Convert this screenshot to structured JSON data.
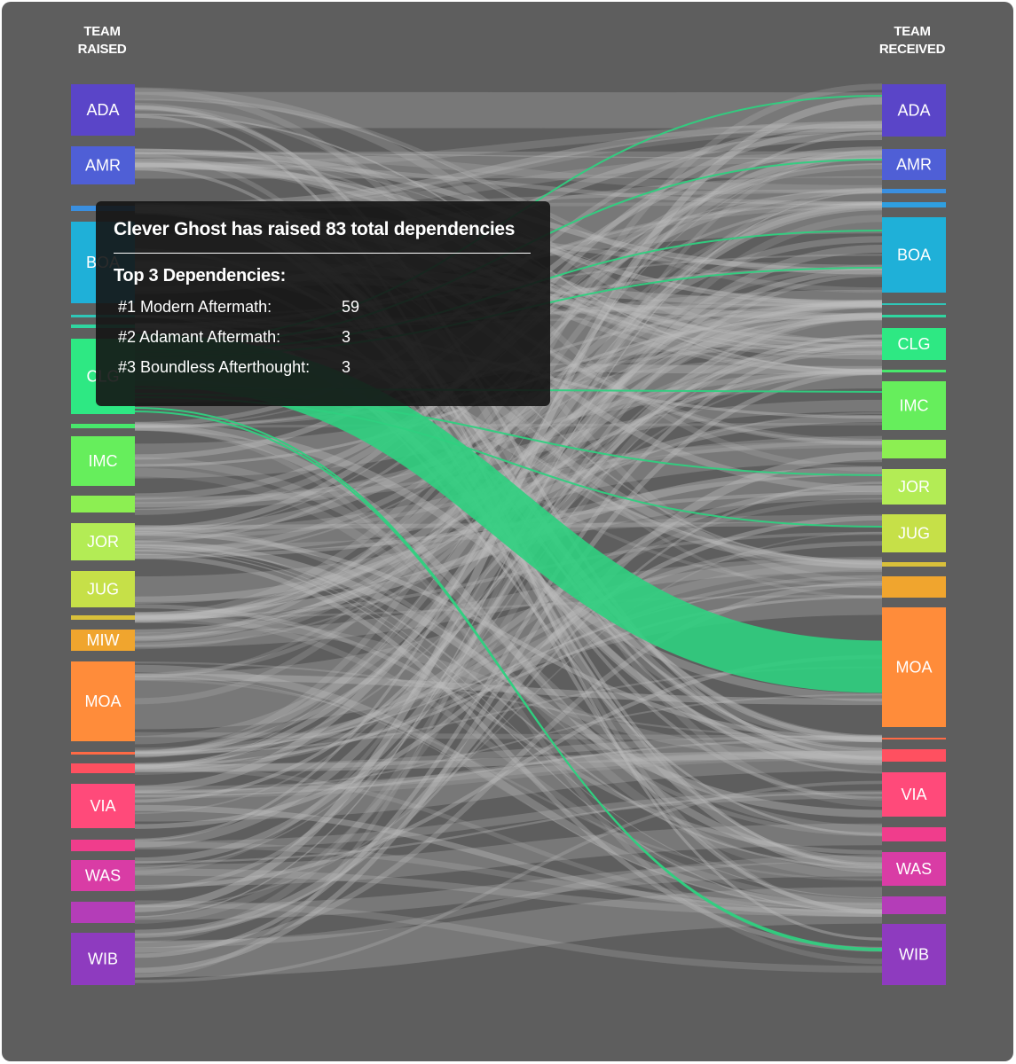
{
  "headers": {
    "left": [
      "TEAM",
      "RAISED"
    ],
    "right": [
      "TEAM",
      "RECEIVED"
    ]
  },
  "colors": {
    "highlight": "#2fd07f",
    "link": "#bdbdbd",
    "background": "#5e5e5e"
  },
  "left_nodes": [
    {
      "id": "L-ADA",
      "label": "ADA",
      "color": "#5a45c8"
    },
    {
      "id": "L-AMR",
      "label": "AMR",
      "color": "#4f5fd6"
    },
    {
      "id": "L-x1",
      "label": "",
      "color": "#3a8fe0"
    },
    {
      "id": "L-BOA",
      "label": "BOA",
      "color": "#1fb0d8"
    },
    {
      "id": "L-x2",
      "label": "",
      "color": "#2fc7b8"
    },
    {
      "id": "L-x3",
      "label": "",
      "color": "#2fd6a0"
    },
    {
      "id": "L-CLG",
      "label": "CLG",
      "color": "#2ee883"
    },
    {
      "id": "L-x4",
      "label": "",
      "color": "#48e86c"
    },
    {
      "id": "L-IMC",
      "label": "IMC",
      "color": "#66ee5c"
    },
    {
      "id": "L-x5",
      "label": "",
      "color": "#8cef52"
    },
    {
      "id": "L-JOR",
      "label": "JOR",
      "color": "#b3ec55"
    },
    {
      "id": "L-JUG",
      "label": "JUG",
      "color": "#c6e048"
    },
    {
      "id": "L-x6",
      "label": "",
      "color": "#d9c03a"
    },
    {
      "id": "L-MIW",
      "label": "MIW",
      "color": "#f0a52e"
    },
    {
      "id": "L-MOA",
      "label": "MOA",
      "color": "#ff8c3a"
    },
    {
      "id": "L-x7",
      "label": "",
      "color": "#ff6a45"
    },
    {
      "id": "L-x8",
      "label": "",
      "color": "#ff5060"
    },
    {
      "id": "L-VIA",
      "label": "VIA",
      "color": "#ff4a7a"
    },
    {
      "id": "L-x9",
      "label": "",
      "color": "#f03d8c"
    },
    {
      "id": "L-WAS",
      "label": "WAS",
      "color": "#d93ca5"
    },
    {
      "id": "L-x10",
      "label": "",
      "color": "#b43db8"
    },
    {
      "id": "L-WIB",
      "label": "WIB",
      "color": "#8e3bbf"
    }
  ],
  "right_nodes": [
    {
      "id": "R-ADA",
      "label": "ADA",
      "color": "#5a45c8"
    },
    {
      "id": "R-AMR",
      "label": "AMR",
      "color": "#4f5fd6"
    },
    {
      "id": "R-x1",
      "label": "",
      "color": "#3a8fe0"
    },
    {
      "id": "R-x2",
      "label": "",
      "color": "#2f9fe0"
    },
    {
      "id": "R-BOA",
      "label": "BOA",
      "color": "#1fb0d8"
    },
    {
      "id": "R-x3",
      "label": "",
      "color": "#2fc7b8"
    },
    {
      "id": "R-x4",
      "label": "",
      "color": "#2fd6a0"
    },
    {
      "id": "R-CLG",
      "label": "CLG",
      "color": "#2ee883"
    },
    {
      "id": "R-x5",
      "label": "",
      "color": "#48e86c"
    },
    {
      "id": "R-IMC",
      "label": "IMC",
      "color": "#66ee5c"
    },
    {
      "id": "R-x6",
      "label": "",
      "color": "#8cef52"
    },
    {
      "id": "R-JOR",
      "label": "JOR",
      "color": "#b3ec55"
    },
    {
      "id": "R-JUG",
      "label": "JUG",
      "color": "#c6e048"
    },
    {
      "id": "R-x7",
      "label": "",
      "color": "#d9c03a"
    },
    {
      "id": "R-x8",
      "label": "",
      "color": "#f0a52e"
    },
    {
      "id": "R-MOA",
      "label": "MOA",
      "color": "#ff8c3a"
    },
    {
      "id": "R-x9",
      "label": "",
      "color": "#ff6a45"
    },
    {
      "id": "R-x10",
      "label": "",
      "color": "#ff5060"
    },
    {
      "id": "R-VIA",
      "label": "VIA",
      "color": "#ff4a7a"
    },
    {
      "id": "R-x11",
      "label": "",
      "color": "#f03d8c"
    },
    {
      "id": "R-WAS",
      "label": "WAS",
      "color": "#d93ca5"
    },
    {
      "id": "R-x12",
      "label": "",
      "color": "#b43db8"
    },
    {
      "id": "R-WIB",
      "label": "WIB",
      "color": "#8e3bbf"
    }
  ],
  "tooltip": {
    "title": "Clever Ghost has raised 83 total dependencies",
    "top_label": "Top 3 Dependencies:",
    "items": [
      {
        "rank_name": "#1 Modern Aftermath:",
        "count": "59"
      },
      {
        "rank_name": "#2 Adamant Aftermath:",
        "count": "3"
      },
      {
        "rank_name": "#3 Boundless Afterthought:",
        "count": "3"
      }
    ]
  }
}
